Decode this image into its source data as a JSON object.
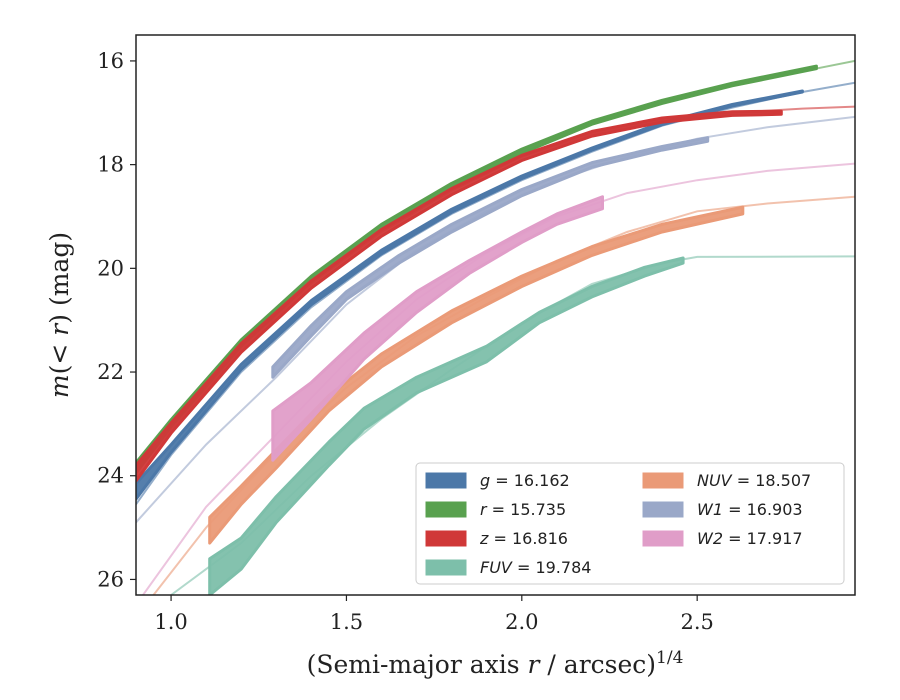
{
  "chart_data": {
    "type": "area",
    "xlabel": "(Semi-major axis r / arcsec)^1/4",
    "ylabel": "m(< r) (mag)",
    "xlim": [
      0.9,
      2.95
    ],
    "ylim": [
      26.3,
      15.5
    ],
    "y_inverted": true,
    "x_ticks": [
      "1.0",
      "1.5",
      "2.0",
      "2.5"
    ],
    "x_tick_values": [
      1.0,
      1.5,
      2.0,
      2.5
    ],
    "y_ticks": [
      "16",
      "18",
      "20",
      "22",
      "24",
      "26"
    ],
    "y_tick_values": [
      16,
      18,
      20,
      22,
      24,
      26
    ],
    "grid": false,
    "legend_position": "lower-right",
    "legend_columns": 2,
    "series": [
      {
        "band": "g",
        "legend": "g = 16.162",
        "color": "#4c78a8",
        "model": [
          [
            0.9,
            24.55
          ],
          [
            1.0,
            23.6
          ],
          [
            1.2,
            22.0
          ],
          [
            1.4,
            20.75
          ],
          [
            1.6,
            19.75
          ],
          [
            1.8,
            18.95
          ],
          [
            2.0,
            18.3
          ],
          [
            2.2,
            17.75
          ],
          [
            2.4,
            17.25
          ],
          [
            2.6,
            16.9
          ],
          [
            2.8,
            16.6
          ],
          [
            2.95,
            16.42
          ]
        ],
        "band_lower": [
          [
            0.9,
            24.45
          ],
          [
            1.0,
            23.55
          ],
          [
            1.2,
            21.95
          ],
          [
            1.4,
            20.7
          ],
          [
            1.6,
            19.72
          ],
          [
            1.8,
            18.92
          ],
          [
            2.0,
            18.27
          ],
          [
            2.2,
            17.72
          ],
          [
            2.4,
            17.23
          ],
          [
            2.6,
            16.87
          ],
          [
            2.8,
            16.6
          ]
        ],
        "band_upper": [
          [
            0.9,
            24.15
          ],
          [
            1.0,
            23.4
          ],
          [
            1.2,
            21.85
          ],
          [
            1.4,
            20.62
          ],
          [
            1.6,
            19.65
          ],
          [
            1.8,
            18.86
          ],
          [
            2.0,
            18.22
          ],
          [
            2.2,
            17.68
          ],
          [
            2.4,
            17.19
          ],
          [
            2.6,
            16.84
          ],
          [
            2.8,
            16.58
          ]
        ]
      },
      {
        "band": "r",
        "legend": "r = 15.735",
        "color": "#59a14f",
        "model": [
          [
            0.9,
            23.9
          ],
          [
            1.0,
            23.0
          ],
          [
            1.2,
            21.45
          ],
          [
            1.4,
            20.2
          ],
          [
            1.6,
            19.2
          ],
          [
            1.8,
            18.4
          ],
          [
            2.0,
            17.75
          ],
          [
            2.2,
            17.2
          ],
          [
            2.4,
            16.8
          ],
          [
            2.6,
            16.45
          ],
          [
            2.8,
            16.2
          ],
          [
            2.95,
            16.0
          ]
        ],
        "band_lower": [
          [
            0.9,
            23.95
          ],
          [
            1.0,
            23.05
          ],
          [
            1.2,
            21.5
          ],
          [
            1.4,
            20.25
          ],
          [
            1.6,
            19.25
          ],
          [
            1.8,
            18.45
          ],
          [
            2.0,
            17.78
          ],
          [
            2.2,
            17.22
          ],
          [
            2.4,
            16.82
          ],
          [
            2.6,
            16.48
          ],
          [
            2.84,
            16.15
          ]
        ],
        "band_upper": [
          [
            0.9,
            23.75
          ],
          [
            1.0,
            22.92
          ],
          [
            1.2,
            21.38
          ],
          [
            1.4,
            20.15
          ],
          [
            1.6,
            19.15
          ],
          [
            1.8,
            18.36
          ],
          [
            2.0,
            17.7
          ],
          [
            2.2,
            17.16
          ],
          [
            2.4,
            16.76
          ],
          [
            2.6,
            16.43
          ],
          [
            2.84,
            16.1
          ]
        ]
      },
      {
        "band": "z",
        "legend": "z = 16.816",
        "color": "#d03838",
        "model": [
          [
            0.9,
            23.95
          ],
          [
            1.0,
            23.1
          ],
          [
            1.2,
            21.55
          ],
          [
            1.4,
            20.3
          ],
          [
            1.6,
            19.3
          ],
          [
            1.8,
            18.5
          ],
          [
            2.0,
            17.85
          ],
          [
            2.2,
            17.4
          ],
          [
            2.4,
            17.15
          ],
          [
            2.6,
            17.0
          ],
          [
            2.8,
            16.92
          ],
          [
            2.95,
            16.88
          ]
        ],
        "band_lower": [
          [
            0.9,
            24.1
          ],
          [
            1.0,
            23.18
          ],
          [
            1.2,
            21.62
          ],
          [
            1.4,
            20.38
          ],
          [
            1.6,
            19.38
          ],
          [
            1.8,
            18.58
          ],
          [
            2.0,
            17.92
          ],
          [
            2.2,
            17.45
          ],
          [
            2.4,
            17.18
          ],
          [
            2.6,
            17.05
          ],
          [
            2.74,
            17.03
          ]
        ],
        "band_upper": [
          [
            0.9,
            23.8
          ],
          [
            1.0,
            22.98
          ],
          [
            1.2,
            21.45
          ],
          [
            1.4,
            20.24
          ],
          [
            1.6,
            19.25
          ],
          [
            1.8,
            18.46
          ],
          [
            2.0,
            17.82
          ],
          [
            2.2,
            17.36
          ],
          [
            2.4,
            17.1
          ],
          [
            2.6,
            16.98
          ],
          [
            2.74,
            16.97
          ]
        ]
      },
      {
        "band": "FUV",
        "legend": "FUV = 19.784",
        "color": "#7dbfaa",
        "model": [
          [
            1.0,
            26.3
          ],
          [
            1.2,
            25.3
          ],
          [
            1.4,
            24.0
          ],
          [
            1.6,
            22.9
          ],
          [
            1.8,
            21.95
          ],
          [
            2.0,
            21.05
          ],
          [
            2.2,
            20.3
          ],
          [
            2.4,
            19.9
          ],
          [
            2.5,
            19.78
          ],
          [
            2.95,
            19.77
          ]
        ],
        "band_lower": [
          [
            1.11,
            26.3
          ],
          [
            1.2,
            25.8
          ],
          [
            1.3,
            24.9
          ],
          [
            1.45,
            23.8
          ],
          [
            1.55,
            23.1
          ],
          [
            1.7,
            22.4
          ],
          [
            1.9,
            21.8
          ],
          [
            2.05,
            21.05
          ],
          [
            2.2,
            20.55
          ],
          [
            2.35,
            20.15
          ],
          [
            2.46,
            19.9
          ]
        ],
        "band_upper": [
          [
            1.11,
            25.6
          ],
          [
            1.2,
            25.2
          ],
          [
            1.3,
            24.4
          ],
          [
            1.45,
            23.35
          ],
          [
            1.55,
            22.7
          ],
          [
            1.7,
            22.1
          ],
          [
            1.9,
            21.5
          ],
          [
            2.05,
            20.85
          ],
          [
            2.2,
            20.35
          ],
          [
            2.35,
            19.98
          ],
          [
            2.46,
            19.8
          ]
        ]
      },
      {
        "band": "NUV",
        "legend": "NUV = 18.507",
        "color": "#ea9a77",
        "model": [
          [
            0.95,
            26.3
          ],
          [
            1.1,
            25.0
          ],
          [
            1.3,
            23.55
          ],
          [
            1.5,
            22.3
          ],
          [
            1.7,
            21.3
          ],
          [
            1.9,
            20.55
          ],
          [
            2.1,
            19.85
          ],
          [
            2.3,
            19.3
          ],
          [
            2.5,
            18.9
          ],
          [
            2.7,
            18.75
          ],
          [
            2.95,
            18.62
          ]
        ],
        "band_lower": [
          [
            1.11,
            25.3
          ],
          [
            1.2,
            24.55
          ],
          [
            1.3,
            23.85
          ],
          [
            1.45,
            22.75
          ],
          [
            1.6,
            21.9
          ],
          [
            1.8,
            21.05
          ],
          [
            2.0,
            20.35
          ],
          [
            2.2,
            19.75
          ],
          [
            2.4,
            19.3
          ],
          [
            2.63,
            18.95
          ]
        ],
        "band_upper": [
          [
            1.11,
            24.8
          ],
          [
            1.2,
            24.2
          ],
          [
            1.3,
            23.5
          ],
          [
            1.45,
            22.45
          ],
          [
            1.6,
            21.65
          ],
          [
            1.8,
            20.82
          ],
          [
            2.0,
            20.15
          ],
          [
            2.2,
            19.58
          ],
          [
            2.4,
            19.15
          ],
          [
            2.63,
            18.82
          ]
        ]
      },
      {
        "band": "W1",
        "legend": "W1 = 16.903",
        "color": "#9aa8c8",
        "model": [
          [
            0.9,
            24.9
          ],
          [
            1.1,
            23.4
          ],
          [
            1.3,
            22.1
          ],
          [
            1.5,
            20.7
          ],
          [
            1.7,
            19.65
          ],
          [
            1.9,
            18.9
          ],
          [
            2.1,
            18.3
          ],
          [
            2.3,
            17.85
          ],
          [
            2.5,
            17.5
          ],
          [
            2.7,
            17.28
          ],
          [
            2.95,
            17.08
          ]
        ],
        "band_lower": [
          [
            1.29,
            22.1
          ],
          [
            1.4,
            21.3
          ],
          [
            1.5,
            20.6
          ],
          [
            1.65,
            19.9
          ],
          [
            1.8,
            19.3
          ],
          [
            2.0,
            18.6
          ],
          [
            2.2,
            18.05
          ],
          [
            2.4,
            17.72
          ],
          [
            2.53,
            17.55
          ]
        ],
        "band_upper": [
          [
            1.29,
            21.9
          ],
          [
            1.4,
            21.1
          ],
          [
            1.5,
            20.45
          ],
          [
            1.65,
            19.75
          ],
          [
            1.8,
            19.15
          ],
          [
            2.0,
            18.48
          ],
          [
            2.2,
            17.96
          ],
          [
            2.4,
            17.65
          ],
          [
            2.53,
            17.48
          ]
        ]
      },
      {
        "band": "W2",
        "legend": "W2 = 17.917",
        "color": "#e09dc8",
        "model": [
          [
            0.92,
            26.3
          ],
          [
            1.1,
            24.6
          ],
          [
            1.3,
            23.2
          ],
          [
            1.5,
            21.8
          ],
          [
            1.7,
            20.6
          ],
          [
            1.9,
            19.7
          ],
          [
            2.1,
            19.0
          ],
          [
            2.3,
            18.55
          ],
          [
            2.5,
            18.3
          ],
          [
            2.7,
            18.12
          ],
          [
            2.95,
            17.98
          ]
        ],
        "band_lower": [
          [
            1.29,
            23.7
          ],
          [
            1.4,
            22.9
          ],
          [
            1.55,
            21.75
          ],
          [
            1.7,
            20.85
          ],
          [
            1.85,
            20.1
          ],
          [
            2.0,
            19.5
          ],
          [
            2.1,
            19.15
          ],
          [
            2.23,
            18.85
          ]
        ],
        "band_upper": [
          [
            1.29,
            22.75
          ],
          [
            1.4,
            22.2
          ],
          [
            1.55,
            21.25
          ],
          [
            1.7,
            20.45
          ],
          [
            1.85,
            19.85
          ],
          [
            2.0,
            19.3
          ],
          [
            2.1,
            18.95
          ],
          [
            2.23,
            18.62
          ]
        ]
      }
    ]
  }
}
